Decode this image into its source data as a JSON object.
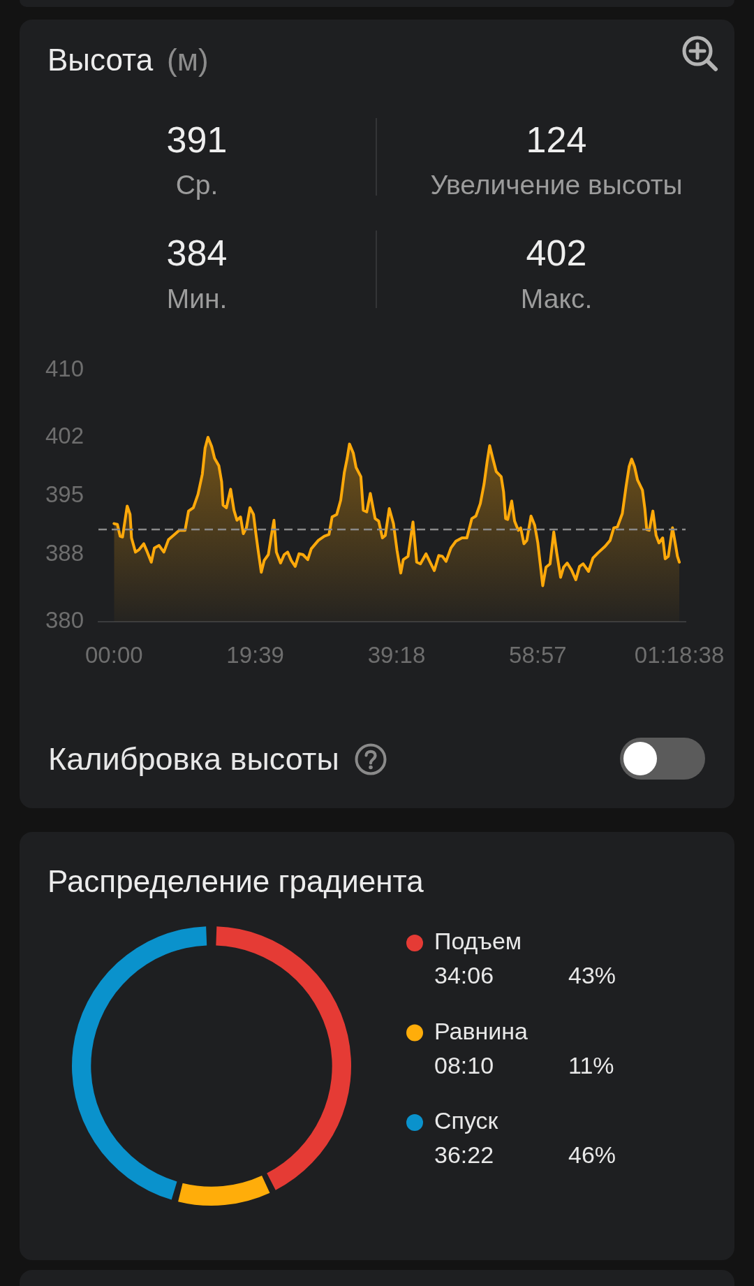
{
  "chart_data": [
    {
      "type": "other",
      "title": "Высота",
      "subtitle": "(м)",
      "categories": [
        "Ср.",
        "Увеличение высоты",
        "Мин.",
        "Макс."
      ],
      "values": [
        391,
        124,
        384,
        402
      ],
      "data_labels": true
    },
    {
      "type": "area",
      "color": "#ffa90a",
      "x": [
        0,
        28,
        51,
        71,
        110,
        134,
        146,
        179,
        209,
        248,
        278,
        311,
        337,
        376,
        416,
        455,
        504,
        544,
        593,
        622,
        662,
        701,
        737,
        760,
        784,
        815,
        839,
        875,
        898,
        910,
        938,
        973,
        1001,
        1026,
        1056,
        1079,
        1105,
        1134,
        1164,
        1184,
        1203,
        1229,
        1253,
        1288,
        1312,
        1335,
        1355,
        1390,
        1420,
        1449,
        1479,
        1512,
        1544,
        1577,
        1617,
        1646,
        1705,
        1755,
        1794,
        1820,
        1859,
        1892,
        1922,
        1946,
        1965,
        1997,
        2020,
        2060,
        2080,
        2109,
        2139,
        2179,
        2209,
        2240,
        2264,
        2297,
        2332,
        2362,
        2393,
        2414,
        2454,
        2495,
        2526,
        2557,
        2604,
        2638,
        2673,
        2710,
        2740,
        2771,
        2812,
        2853,
        2904,
        2945,
        2986,
        3020,
        3057,
        3088,
        3114,
        3135,
        3159,
        3190,
        3231,
        3251,
        3268,
        3286,
        3319,
        3343,
        3374,
        3394,
        3421,
        3445,
        3480,
        3511,
        3537,
        3558,
        3578,
        3605,
        3639,
        3670,
        3695,
        3727,
        3752,
        3782,
        3817,
        3854,
        3885,
        3915,
        3960,
        3997,
        4038,
        4099,
        4140,
        4171,
        4201,
        4242,
        4273,
        4299,
        4320,
        4344,
        4369,
        4410,
        4430,
        4446,
        4467,
        4497,
        4524,
        4548,
        4579,
        4600,
        4626,
        4661,
        4687,
        4702,
        4718
      ],
      "values": [
        391.7,
        391.6,
        390.2,
        390.1,
        393.8,
        392.8,
        390.0,
        388.3,
        388.6,
        389.3,
        388.3,
        387.1,
        388.8,
        389.1,
        388.3,
        389.8,
        390.4,
        390.9,
        390.9,
        393.2,
        393.6,
        395.2,
        397.6,
        400.7,
        402.0,
        400.9,
        399.5,
        398.6,
        396.7,
        393.9,
        393.6,
        395.8,
        393.3,
        392.1,
        392.5,
        390.5,
        391.2,
        393.6,
        392.8,
        390.5,
        388.5,
        385.9,
        387.3,
        388.0,
        390.2,
        392.1,
        388.3,
        387.0,
        388.0,
        388.3,
        387.3,
        386.6,
        388.1,
        388.0,
        387.4,
        388.7,
        389.7,
        390.2,
        390.4,
        392.5,
        392.8,
        394.5,
        397.8,
        399.5,
        401.2,
        400.1,
        398.4,
        397.3,
        393.3,
        393.1,
        395.3,
        392.3,
        392.0,
        390.0,
        390.3,
        393.5,
        391.7,
        388.5,
        385.8,
        387.4,
        387.8,
        391.9,
        387.1,
        386.9,
        388.1,
        387.1,
        386.1,
        387.9,
        387.8,
        387.2,
        388.8,
        389.6,
        390.0,
        390.0,
        392.3,
        392.6,
        394.1,
        396.4,
        399.1,
        401.0,
        399.6,
        397.9,
        397.3,
        395.5,
        392.3,
        392.2,
        394.4,
        392.0,
        390.9,
        391.2,
        389.3,
        389.7,
        392.6,
        391.5,
        389.4,
        386.8,
        384.3,
        386.5,
        386.9,
        390.7,
        388.2,
        385.3,
        386.5,
        387.0,
        386.2,
        385.0,
        386.6,
        386.9,
        386.0,
        387.6,
        388.2,
        389.0,
        389.7,
        391.2,
        391.3,
        392.9,
        396.1,
        398.5,
        399.4,
        398.5,
        396.9,
        395.7,
        393.5,
        391.0,
        390.9,
        393.2,
        390.3,
        389.4,
        390.0,
        387.5,
        387.8,
        391.2,
        389.1,
        387.8,
        387.1
      ],
      "xlim": [
        -130,
        4770
      ],
      "xticks": [
        {
          "value": 0,
          "label": "00:00"
        },
        {
          "value": 1179,
          "label": "19:39"
        },
        {
          "value": 2358,
          "label": "39:18"
        },
        {
          "value": 3537,
          "label": "58:57"
        },
        {
          "value": 4718,
          "label": "01:18:38"
        }
      ],
      "ylim": [
        380,
        410
      ],
      "yticks": [
        380,
        388,
        395,
        402,
        410
      ],
      "ref_lines": [
        {
          "axis": "y",
          "value": 391,
          "color": "#8a8a8a",
          "line_style": "dashed"
        }
      ],
      "annotations": [
        "Калибровка высоты"
      ]
    },
    {
      "type": "donut",
      "title": "Распределение градиента",
      "categories": [
        "Подъем",
        "Равнина",
        "Спуск"
      ],
      "values": [
        43,
        11,
        46
      ],
      "colors": [
        "#e53b35",
        "#ffad0a",
        "#0a92cc"
      ],
      "annotations": [
        "34:06",
        "43%",
        "08:10",
        "11%",
        "36:22",
        "46%"
      ],
      "legend": "right"
    }
  ]
}
